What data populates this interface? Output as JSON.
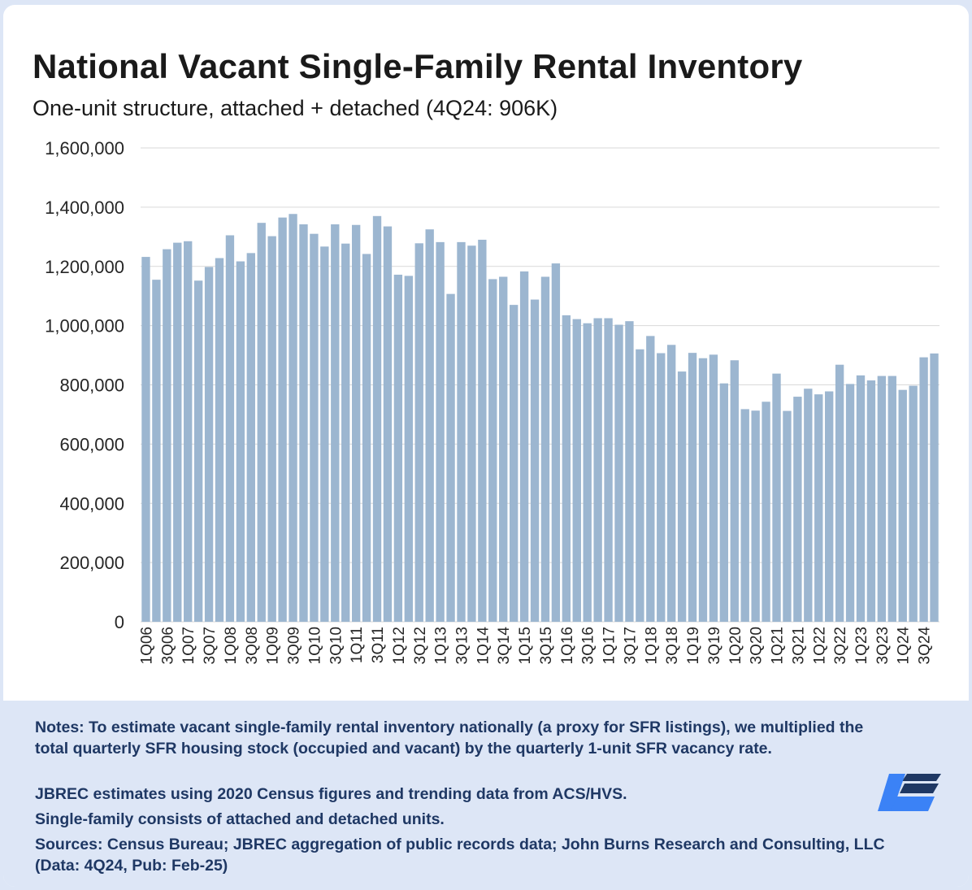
{
  "chart_data": {
    "type": "bar",
    "title": "National Vacant Single-Family Rental Inventory",
    "subtitle": "One-unit structure, attached + detached (4Q24: 906K)",
    "ylim": [
      0,
      1600000
    ],
    "yticks": [
      "0",
      "200,000",
      "400,000",
      "600,000",
      "800,000",
      "1,000,000",
      "1,200,000",
      "1,400,000",
      "1,600,000"
    ],
    "grid": true,
    "bar_color": "#9cb6d0",
    "categories": [
      "1Q06",
      "2Q06",
      "3Q06",
      "4Q06",
      "1Q07",
      "2Q07",
      "3Q07",
      "4Q07",
      "1Q08",
      "2Q08",
      "3Q08",
      "4Q08",
      "1Q09",
      "2Q09",
      "3Q09",
      "4Q09",
      "1Q10",
      "2Q10",
      "3Q10",
      "4Q10",
      "1Q11",
      "2Q11",
      "3Q11",
      "4Q11",
      "1Q12",
      "2Q12",
      "3Q12",
      "4Q12",
      "1Q13",
      "2Q13",
      "3Q13",
      "4Q13",
      "1Q14",
      "2Q14",
      "3Q14",
      "4Q14",
      "1Q15",
      "2Q15",
      "3Q15",
      "4Q15",
      "1Q16",
      "2Q16",
      "3Q16",
      "4Q16",
      "1Q17",
      "2Q17",
      "3Q17",
      "4Q17",
      "1Q18",
      "2Q18",
      "3Q18",
      "4Q18",
      "1Q19",
      "2Q19",
      "3Q19",
      "4Q19",
      "1Q20",
      "2Q20",
      "3Q20",
      "4Q20",
      "1Q21",
      "2Q21",
      "3Q21",
      "4Q21",
      "1Q22",
      "2Q22",
      "3Q22",
      "4Q22",
      "1Q23",
      "2Q23",
      "3Q23",
      "4Q23",
      "1Q24",
      "2Q24",
      "3Q24",
      "4Q24"
    ],
    "x_tick_labels": [
      "1Q06",
      "3Q06",
      "1Q07",
      "3Q07",
      "1Q08",
      "3Q08",
      "1Q09",
      "3Q09",
      "1Q10",
      "3Q10",
      "1Q11",
      "3Q11",
      "1Q12",
      "3Q12",
      "1Q13",
      "3Q13",
      "1Q14",
      "3Q14",
      "1Q15",
      "3Q15",
      "1Q16",
      "3Q16",
      "1Q17",
      "3Q17",
      "1Q18",
      "3Q18",
      "1Q19",
      "3Q19",
      "1Q20",
      "3Q20",
      "1Q21",
      "3Q21",
      "1Q22",
      "3Q22",
      "1Q23",
      "3Q23",
      "1Q24",
      "3Q24"
    ],
    "values": [
      1232000,
      1155000,
      1258000,
      1280000,
      1285000,
      1152000,
      1198000,
      1228000,
      1305000,
      1217000,
      1245000,
      1347000,
      1302000,
      1365000,
      1377000,
      1342000,
      1310000,
      1267000,
      1342000,
      1277000,
      1340000,
      1242000,
      1370000,
      1335000,
      1172000,
      1168000,
      1278000,
      1325000,
      1282000,
      1107000,
      1282000,
      1270000,
      1290000,
      1157000,
      1165000,
      1070000,
      1183000,
      1088000,
      1165000,
      1210000,
      1035000,
      1022000,
      1008000,
      1025000,
      1025000,
      1003000,
      1015000,
      920000,
      965000,
      907000,
      935000,
      845000,
      908000,
      890000,
      902000,
      805000,
      883000,
      718000,
      713000,
      743000,
      838000,
      712000,
      760000,
      787000,
      768000,
      778000,
      868000,
      803000,
      832000,
      815000,
      830000,
      830000,
      783000,
      797000,
      893000,
      906000
    ]
  },
  "notes": {
    "line1": "Notes: To estimate vacant single-family rental inventory nationally (a proxy for SFR listings), we multiplied the total quarterly SFR housing stock (occupied and vacant) by the quarterly 1-unit SFR vacancy rate.",
    "line2": "JBREC estimates using 2020 Census figures and trending data from ACS/HVS.",
    "line3": "Single-family consists of attached and detached units.",
    "line4": "Sources: Census Bureau; JBREC aggregation of public records data; John Burns Research and Consulting, LLC (Data: 4Q24, Pub: Feb-25)"
  },
  "logo": {
    "icon": "john-burns-logo-icon",
    "colors": [
      "#1f3864",
      "#3b82f6"
    ]
  }
}
